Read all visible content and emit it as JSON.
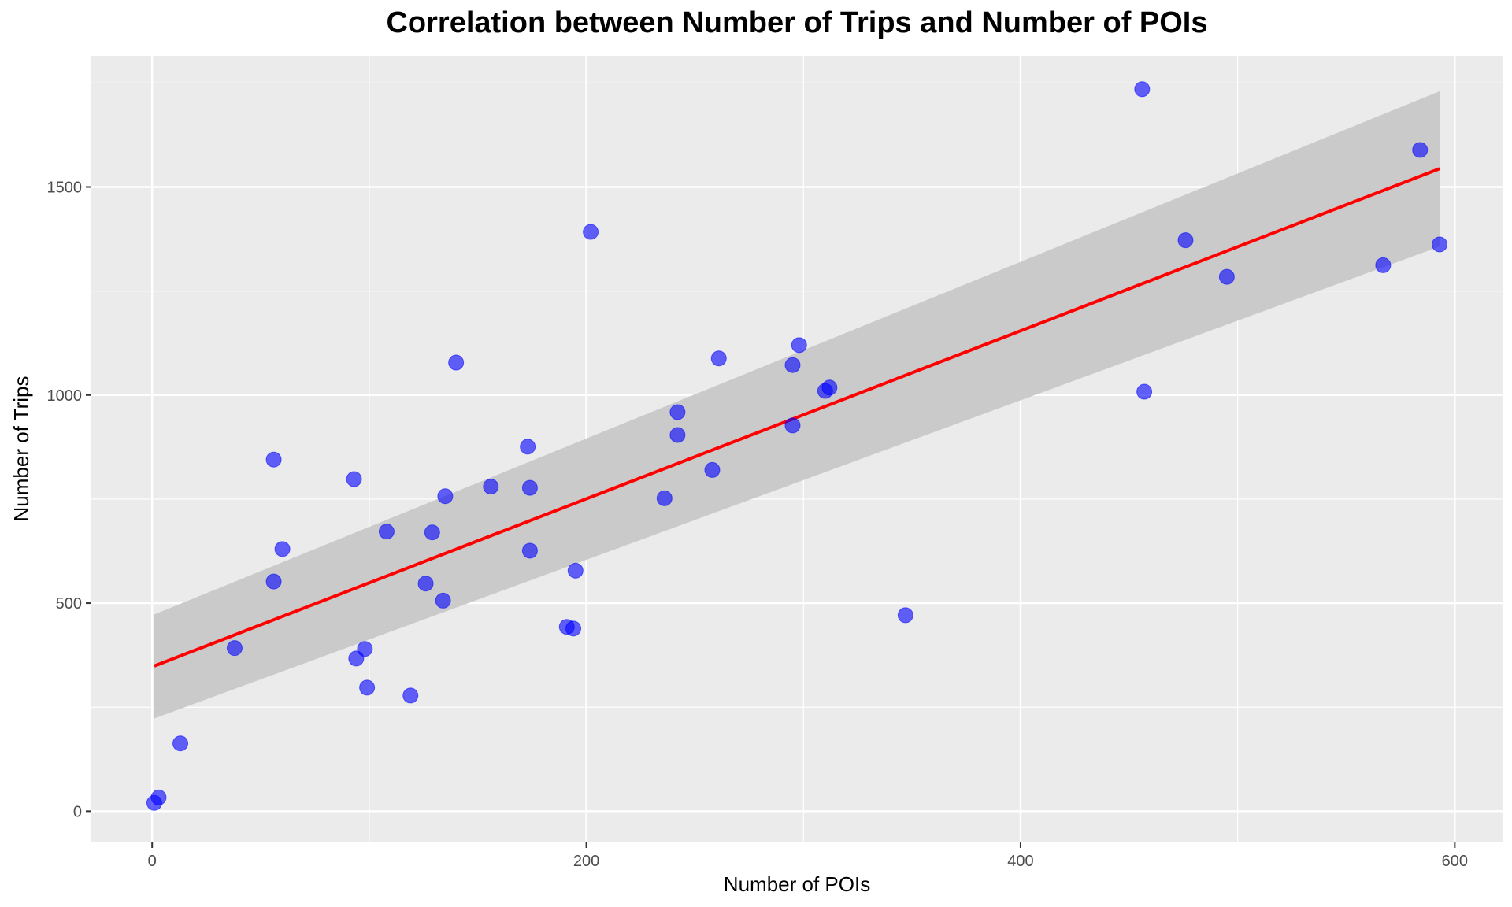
{
  "chart_data": {
    "type": "scatter",
    "title": "Correlation between Number of Trips and Number of POIs",
    "xlabel": "Number of POIs",
    "ylabel": "Number of Trips",
    "xlim": [
      -28,
      622
    ],
    "ylim": [
      -75,
      1815
    ],
    "x_ticks": [
      0,
      200,
      400,
      600
    ],
    "y_ticks": [
      0,
      500,
      1000,
      1500
    ],
    "x_tick_labels": [
      "0",
      "200",
      "400",
      "600"
    ],
    "y_tick_labels": [
      "0",
      "500",
      "1000",
      "1500"
    ],
    "grid": true,
    "legend": "none",
    "colors": {
      "panel": "#ebebeb",
      "grid": "#ffffff",
      "points": "#0000ff",
      "trend_line": "#ff0000",
      "confidence_band": "#c8c8c8"
    },
    "points": [
      {
        "x": 1,
        "y": 20
      },
      {
        "x": 3,
        "y": 33
      },
      {
        "x": 13,
        "y": 163
      },
      {
        "x": 38,
        "y": 392
      },
      {
        "x": 56,
        "y": 845
      },
      {
        "x": 56,
        "y": 552
      },
      {
        "x": 60,
        "y": 630
      },
      {
        "x": 93,
        "y": 798
      },
      {
        "x": 94,
        "y": 367
      },
      {
        "x": 98,
        "y": 390
      },
      {
        "x": 99,
        "y": 297
      },
      {
        "x": 108,
        "y": 672
      },
      {
        "x": 119,
        "y": 278
      },
      {
        "x": 126,
        "y": 547
      },
      {
        "x": 129,
        "y": 670
      },
      {
        "x": 134,
        "y": 506
      },
      {
        "x": 135,
        "y": 757
      },
      {
        "x": 140,
        "y": 1078
      },
      {
        "x": 156,
        "y": 780
      },
      {
        "x": 173,
        "y": 876
      },
      {
        "x": 174,
        "y": 777
      },
      {
        "x": 174,
        "y": 626
      },
      {
        "x": 191,
        "y": 443
      },
      {
        "x": 194,
        "y": 439
      },
      {
        "x": 195,
        "y": 578
      },
      {
        "x": 202,
        "y": 1392
      },
      {
        "x": 236,
        "y": 752
      },
      {
        "x": 242,
        "y": 959
      },
      {
        "x": 242,
        "y": 904
      },
      {
        "x": 258,
        "y": 820
      },
      {
        "x": 261,
        "y": 1088
      },
      {
        "x": 295,
        "y": 1072
      },
      {
        "x": 295,
        "y": 927
      },
      {
        "x": 298,
        "y": 1120
      },
      {
        "x": 310,
        "y": 1010
      },
      {
        "x": 312,
        "y": 1018
      },
      {
        "x": 347,
        "y": 471
      },
      {
        "x": 456,
        "y": 1735
      },
      {
        "x": 457,
        "y": 1008
      },
      {
        "x": 476,
        "y": 1372
      },
      {
        "x": 495,
        "y": 1284
      },
      {
        "x": 567,
        "y": 1312
      },
      {
        "x": 584,
        "y": 1589
      },
      {
        "x": 593,
        "y": 1362
      }
    ],
    "trend_line": {
      "x": [
        1,
        593
      ],
      "y": [
        349,
        1544
      ]
    },
    "confidence_band": {
      "x": [
        1,
        593
      ],
      "lower": [
        223,
        1357
      ],
      "upper": [
        473,
        1730
      ]
    }
  }
}
